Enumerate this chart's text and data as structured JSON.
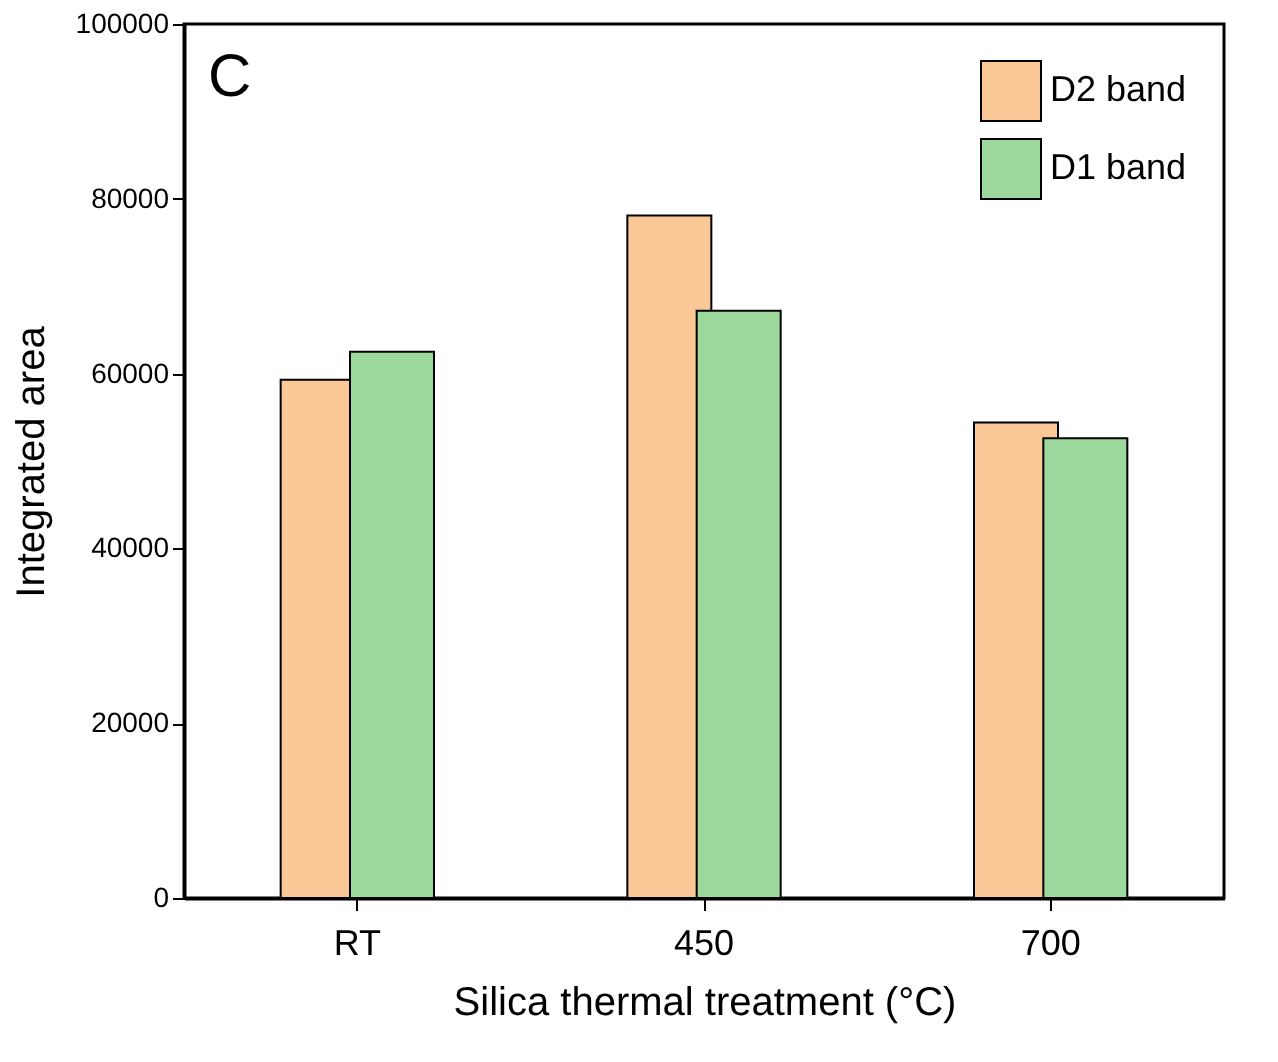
{
  "chart_data": {
    "type": "bar",
    "xlabel": "Silica thermal treatment (°C)",
    "ylabel": "Integrated area",
    "categories": [
      "RT",
      "450",
      "700"
    ],
    "series": [
      {
        "name": "D2 band",
        "color": "#fac796",
        "values": [
          59300,
          78100,
          54400
        ]
      },
      {
        "name": "D1 band",
        "color": "#9dd89c",
        "values": [
          62500,
          67200,
          52600
        ]
      }
    ],
    "ylim": [
      0,
      100000
    ],
    "yticks": [
      0,
      20000,
      40000,
      60000,
      80000,
      100000
    ],
    "annotations": [
      "C"
    ],
    "grid": false,
    "legend": "top right"
  }
}
